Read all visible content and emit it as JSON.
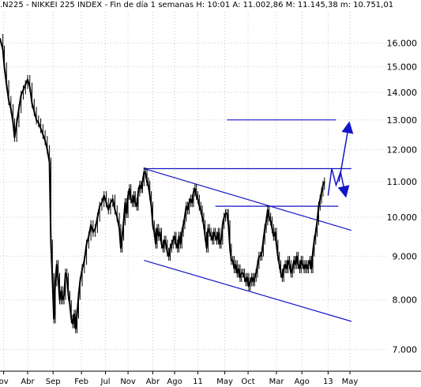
{
  "header": {
    "title": ".N225 - NIKKEI 225 INDEX - Fin de día 1 semanas  H: 10:01  A: 11.002,86  M: 11.145,38  m: 10.751,01"
  },
  "colors": {
    "price": "#000000",
    "annotation": "#1515c8",
    "grid": "#c8c8c8",
    "background": "#ffffff"
  },
  "chart_data": {
    "type": "line",
    "title": ".N225 - NIKKEI 225 INDEX - Fin de día 1 semanas  H: 10:01  A: 11.002,86  M: 11.145,38  m: 10.751,01",
    "xlabel": "",
    "ylabel": "",
    "y_scale": "log",
    "ylim": [
      6600,
      17400
    ],
    "xlim": [
      0,
      532
    ],
    "grid": true,
    "yticks": [
      {
        "value": 7000,
        "label": "7.000"
      },
      {
        "value": 8000,
        "label": "8.000"
      },
      {
        "value": 9000,
        "label": "9.000"
      },
      {
        "value": 10000,
        "label": "10.000"
      },
      {
        "value": 11000,
        "label": "11.000"
      },
      {
        "value": 12000,
        "label": "12.000"
      },
      {
        "value": 13000,
        "label": "13.000"
      },
      {
        "value": 14000,
        "label": "14.000"
      },
      {
        "value": 15000,
        "label": "15.000"
      },
      {
        "value": 16000,
        "label": "16.000"
      }
    ],
    "xticks": [
      {
        "pos": 5,
        "label": "ov"
      },
      {
        "pos": 38,
        "label": "Abr"
      },
      {
        "pos": 73,
        "label": "Sep"
      },
      {
        "pos": 112,
        "label": "Feb"
      },
      {
        "pos": 145,
        "label": "Jul"
      },
      {
        "pos": 176,
        "label": "Nov"
      },
      {
        "pos": 210,
        "label": "Abr"
      },
      {
        "pos": 240,
        "label": "Ago"
      },
      {
        "pos": 272,
        "label": "11"
      },
      {
        "pos": 309,
        "label": "May"
      },
      {
        "pos": 341,
        "label": "Oct"
      },
      {
        "pos": 380,
        "label": "Mar"
      },
      {
        "pos": 415,
        "label": "Ago"
      },
      {
        "pos": 451,
        "label": "13"
      },
      {
        "pos": 481,
        "label": "May"
      }
    ],
    "series": [
      {
        "values": [
          [
            0,
            16200
          ],
          [
            4,
            15700
          ],
          [
            6,
            15000
          ],
          [
            9,
            14300
          ],
          [
            12,
            13700
          ],
          [
            15,
            13400
          ],
          [
            18,
            12900
          ],
          [
            20,
            12400
          ],
          [
            23,
            12900
          ],
          [
            26,
            13400
          ],
          [
            29,
            13900
          ],
          [
            32,
            14100
          ],
          [
            35,
            14300
          ],
          [
            38,
            14500
          ],
          [
            41,
            14200
          ],
          [
            44,
            13600
          ],
          [
            47,
            13300
          ],
          [
            50,
            13000
          ],
          [
            53,
            12900
          ],
          [
            56,
            12700
          ],
          [
            59,
            12500
          ],
          [
            62,
            12300
          ],
          [
            65,
            12000
          ],
          [
            68,
            11600
          ],
          [
            70,
            9300
          ],
          [
            72,
            8500
          ],
          [
            74,
            7600
          ],
          [
            76,
            8400
          ],
          [
            78,
            8800
          ],
          [
            80,
            8500
          ],
          [
            82,
            8000
          ],
          [
            84,
            8200
          ],
          [
            86,
            8000
          ],
          [
            88,
            8100
          ],
          [
            90,
            8600
          ],
          [
            92,
            8500
          ],
          [
            94,
            8100
          ],
          [
            96,
            7900
          ],
          [
            98,
            7600
          ],
          [
            100,
            7500
          ],
          [
            102,
            7700
          ],
          [
            104,
            7400
          ],
          [
            106,
            7700
          ],
          [
            108,
            8100
          ],
          [
            110,
            8400
          ],
          [
            113,
            8700
          ],
          [
            116,
            8900
          ],
          [
            119,
            9300
          ],
          [
            122,
            9500
          ],
          [
            125,
            9800
          ],
          [
            128,
            9600
          ],
          [
            131,
            9700
          ],
          [
            134,
            10000
          ],
          [
            137,
            10300
          ],
          [
            140,
            10400
          ],
          [
            143,
            10600
          ],
          [
            146,
            10400
          ],
          [
            149,
            10200
          ],
          [
            152,
            10400
          ],
          [
            155,
            10500
          ],
          [
            158,
            10200
          ],
          [
            161,
            10000
          ],
          [
            164,
            9700
          ],
          [
            166,
            9200
          ],
          [
            168,
            9500
          ],
          [
            170,
            9900
          ],
          [
            172,
            10400
          ],
          [
            174,
            10100
          ],
          [
            176,
            10600
          ],
          [
            178,
            10800
          ],
          [
            180,
            10500
          ],
          [
            182,
            10400
          ],
          [
            184,
            10600
          ],
          [
            186,
            10400
          ],
          [
            188,
            10300
          ],
          [
            190,
            10700
          ],
          [
            192,
            10900
          ],
          [
            194,
            10800
          ],
          [
            196,
            11000
          ],
          [
            198,
            11300
          ],
          [
            200,
            11250
          ],
          [
            202,
            11000
          ],
          [
            204,
            10900
          ],
          [
            206,
            10600
          ],
          [
            208,
            10300
          ],
          [
            210,
            9800
          ],
          [
            212,
            9600
          ],
          [
            214,
            9300
          ],
          [
            216,
            9700
          ],
          [
            218,
            9500
          ],
          [
            220,
            9600
          ],
          [
            222,
            9300
          ],
          [
            224,
            9200
          ],
          [
            226,
            9400
          ],
          [
            228,
            9300
          ],
          [
            230,
            9100
          ],
          [
            232,
            9000
          ],
          [
            234,
            9200
          ],
          [
            236,
            9300
          ],
          [
            238,
            9400
          ],
          [
            240,
            9500
          ],
          [
            242,
            9300
          ],
          [
            244,
            9200
          ],
          [
            246,
            9500
          ],
          [
            248,
            9300
          ],
          [
            250,
            9600
          ],
          [
            252,
            9800
          ],
          [
            254,
            10000
          ],
          [
            256,
            10300
          ],
          [
            258,
            10200
          ],
          [
            260,
            10400
          ],
          [
            262,
            10500
          ],
          [
            264,
            10400
          ],
          [
            266,
            10700
          ],
          [
            268,
            10800
          ],
          [
            270,
            10600
          ],
          [
            272,
            10500
          ],
          [
            274,
            10300
          ],
          [
            276,
            10200
          ],
          [
            278,
            10000
          ],
          [
            280,
            9800
          ],
          [
            282,
            9500
          ],
          [
            284,
            9200
          ],
          [
            286,
            9700
          ],
          [
            288,
            9600
          ],
          [
            290,
            9500
          ],
          [
            292,
            9400
          ],
          [
            294,
            9600
          ],
          [
            296,
            9500
          ],
          [
            298,
            9400
          ],
          [
            300,
            9600
          ],
          [
            302,
            9300
          ],
          [
            304,
            9400
          ],
          [
            306,
            9800
          ],
          [
            308,
            10000
          ],
          [
            310,
            10100
          ],
          [
            312,
            10100
          ],
          [
            314,
            9800
          ],
          [
            316,
            9200
          ],
          [
            318,
            8900
          ],
          [
            320,
            8900
          ],
          [
            322,
            8700
          ],
          [
            324,
            8800
          ],
          [
            326,
            8600
          ],
          [
            328,
            8700
          ],
          [
            330,
            8500
          ],
          [
            332,
            8600
          ],
          [
            334,
            8600
          ],
          [
            336,
            8500
          ],
          [
            338,
            8400
          ],
          [
            340,
            8500
          ],
          [
            342,
            8300
          ],
          [
            344,
            8400
          ],
          [
            346,
            8500
          ],
          [
            348,
            8400
          ],
          [
            350,
            8500
          ],
          [
            352,
            8600
          ],
          [
            354,
            8800
          ],
          [
            356,
            9000
          ],
          [
            358,
            9000
          ],
          [
            360,
            9100
          ],
          [
            362,
            9400
          ],
          [
            364,
            9700
          ],
          [
            366,
            9900
          ],
          [
            368,
            10200
          ],
          [
            370,
            10000
          ],
          [
            372,
            9900
          ],
          [
            374,
            9700
          ],
          [
            376,
            9500
          ],
          [
            378,
            9600
          ],
          [
            380,
            9300
          ],
          [
            382,
            9000
          ],
          [
            384,
            8800
          ],
          [
            386,
            8600
          ],
          [
            388,
            8500
          ],
          [
            390,
            8700
          ],
          [
            392,
            8800
          ],
          [
            394,
            8700
          ],
          [
            396,
            8900
          ],
          [
            398,
            8800
          ],
          [
            400,
            8600
          ],
          [
            402,
            8700
          ],
          [
            404,
            8900
          ],
          [
            406,
            8800
          ],
          [
            408,
            9000
          ],
          [
            410,
            8800
          ],
          [
            412,
            8700
          ],
          [
            414,
            8900
          ],
          [
            416,
            8800
          ],
          [
            418,
            8700
          ],
          [
            420,
            8800
          ],
          [
            422,
            8700
          ],
          [
            424,
            8800
          ],
          [
            426,
            8900
          ],
          [
            428,
            8700
          ],
          [
            430,
            9100
          ],
          [
            432,
            9400
          ],
          [
            434,
            9600
          ],
          [
            436,
            9900
          ],
          [
            438,
            10300
          ],
          [
            440,
            10500
          ],
          [
            442,
            10700
          ],
          [
            444,
            10900
          ],
          [
            446,
            11000
          ]
        ]
      }
    ],
    "annotations": [
      {
        "type": "hline",
        "y": 13000,
        "x1": 312,
        "x2": 462
      },
      {
        "type": "hline",
        "y": 11400,
        "x1": 198,
        "x2": 483
      },
      {
        "type": "hline",
        "y": 10300,
        "x1": 296,
        "x2": 465
      },
      {
        "type": "trendline",
        "p1": [
          198,
          11400
        ],
        "p2": [
          483,
          9650
        ]
      },
      {
        "type": "trendline",
        "p1": [
          198,
          8900
        ],
        "p2": [
          483,
          7550
        ]
      },
      {
        "type": "projection",
        "points": [
          [
            451,
            10600
          ],
          [
            456,
            11400
          ],
          [
            462,
            10900
          ],
          [
            468,
            11300
          ],
          [
            474,
            10700
          ]
        ]
      },
      {
        "type": "arrow",
        "from": [
          466,
          11000
        ],
        "to": [
          479,
          12750
        ]
      }
    ]
  }
}
